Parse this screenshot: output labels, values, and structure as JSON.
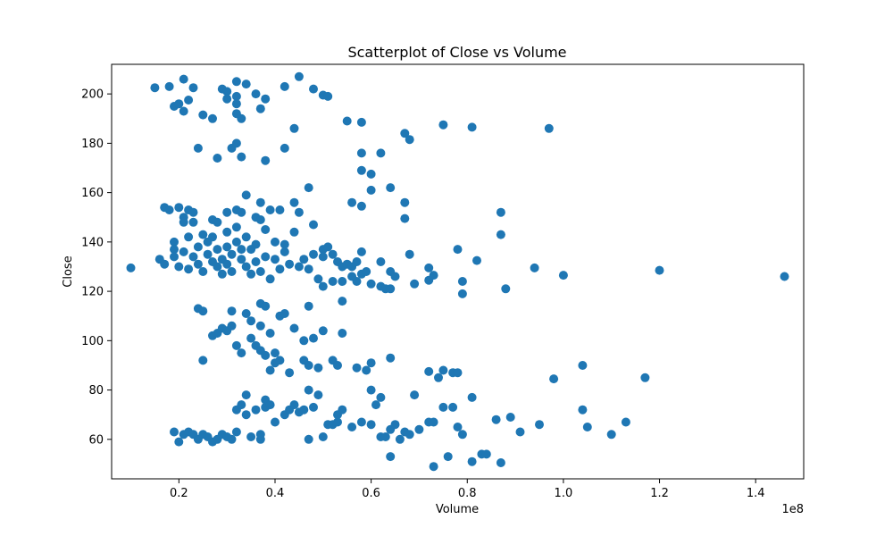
{
  "chart_data": {
    "type": "scatter",
    "title": "Scatterplot of Close vs Volume",
    "xlabel": "Volume",
    "ylabel": "Close",
    "x_offset_label": "1e8",
    "xlim": [
      0.06,
      1.5
    ],
    "ylim": [
      44,
      212
    ],
    "xticks": [
      0.2,
      0.4,
      0.6,
      0.8,
      1.0,
      1.2,
      1.4
    ],
    "xtick_labels": [
      "0.2",
      "0.4",
      "0.6",
      "0.8",
      "1.0",
      "1.2",
      "1.4"
    ],
    "yticks": [
      60,
      80,
      100,
      120,
      140,
      160,
      180,
      200
    ],
    "ytick_labels": [
      "60",
      "80",
      "100",
      "120",
      "140",
      "160",
      "180",
      "200"
    ],
    "grid": false,
    "marker_color": "#1f77b4",
    "points": [
      [
        0.15,
        202.5
      ],
      [
        0.18,
        203
      ],
      [
        0.21,
        206
      ],
      [
        0.23,
        202.5
      ],
      [
        0.19,
        195
      ],
      [
        0.2,
        196
      ],
      [
        0.21,
        193
      ],
      [
        0.22,
        197.5
      ],
      [
        0.25,
        191.5
      ],
      [
        0.27,
        190
      ],
      [
        0.29,
        202
      ],
      [
        0.3,
        201
      ],
      [
        0.3,
        198
      ],
      [
        0.32,
        205
      ],
      [
        0.32,
        199
      ],
      [
        0.32,
        196
      ],
      [
        0.32,
        192
      ],
      [
        0.33,
        190
      ],
      [
        0.34,
        204
      ],
      [
        0.36,
        200
      ],
      [
        0.37,
        194
      ],
      [
        0.38,
        198
      ],
      [
        0.42,
        203
      ],
      [
        0.45,
        207
      ],
      [
        0.48,
        202
      ],
      [
        0.5,
        199.5
      ],
      [
        0.51,
        199
      ],
      [
        0.24,
        178
      ],
      [
        0.28,
        174
      ],
      [
        0.31,
        178
      ],
      [
        0.32,
        180
      ],
      [
        0.33,
        174.5
      ],
      [
        0.38,
        173
      ],
      [
        0.42,
        178
      ],
      [
        0.44,
        186
      ],
      [
        0.55,
        189
      ],
      [
        0.58,
        188.5
      ],
      [
        0.58,
        176
      ],
      [
        0.58,
        169
      ],
      [
        0.6,
        167.5
      ],
      [
        0.62,
        176
      ],
      [
        0.6,
        161
      ],
      [
        0.64,
        162
      ],
      [
        0.67,
        184
      ],
      [
        0.68,
        181.5
      ],
      [
        0.75,
        187.5
      ],
      [
        0.81,
        186.5
      ],
      [
        0.97,
        186
      ],
      [
        0.17,
        154
      ],
      [
        0.18,
        153
      ],
      [
        0.2,
        154
      ],
      [
        0.21,
        150
      ],
      [
        0.21,
        148
      ],
      [
        0.22,
        153
      ],
      [
        0.23,
        152
      ],
      [
        0.23,
        148
      ],
      [
        0.27,
        149
      ],
      [
        0.28,
        148
      ],
      [
        0.3,
        152
      ],
      [
        0.32,
        153
      ],
      [
        0.33,
        152
      ],
      [
        0.34,
        159
      ],
      [
        0.36,
        150
      ],
      [
        0.37,
        156
      ],
      [
        0.37,
        149
      ],
      [
        0.39,
        153
      ],
      [
        0.41,
        153
      ],
      [
        0.44,
        156
      ],
      [
        0.45,
        152
      ],
      [
        0.47,
        162
      ],
      [
        0.48,
        147
      ],
      [
        0.56,
        156
      ],
      [
        0.58,
        154.5
      ],
      [
        0.67,
        156
      ],
      [
        0.67,
        149.5
      ],
      [
        0.87,
        152
      ],
      [
        0.87,
        143
      ],
      [
        0.16,
        133
      ],
      [
        0.17,
        131
      ],
      [
        0.19,
        140
      ],
      [
        0.19,
        137
      ],
      [
        0.19,
        134
      ],
      [
        0.2,
        130
      ],
      [
        0.21,
        136
      ],
      [
        0.22,
        129
      ],
      [
        0.22,
        142
      ],
      [
        0.23,
        134
      ],
      [
        0.24,
        138
      ],
      [
        0.24,
        131
      ],
      [
        0.25,
        143
      ],
      [
        0.25,
        128
      ],
      [
        0.26,
        140
      ],
      [
        0.26,
        135
      ],
      [
        0.27,
        132
      ],
      [
        0.27,
        142
      ],
      [
        0.28,
        130
      ],
      [
        0.28,
        137
      ],
      [
        0.29,
        133
      ],
      [
        0.29,
        127
      ],
      [
        0.3,
        144
      ],
      [
        0.3,
        138
      ],
      [
        0.3,
        131
      ],
      [
        0.31,
        135
      ],
      [
        0.31,
        128
      ],
      [
        0.32,
        146
      ],
      [
        0.32,
        140
      ],
      [
        0.33,
        137
      ],
      [
        0.33,
        133
      ],
      [
        0.34,
        142
      ],
      [
        0.34,
        130
      ],
      [
        0.35,
        137
      ],
      [
        0.35,
        127
      ],
      [
        0.36,
        139
      ],
      [
        0.36,
        132
      ],
      [
        0.37,
        128
      ],
      [
        0.38,
        145
      ],
      [
        0.38,
        134
      ],
      [
        0.39,
        125
      ],
      [
        0.4,
        140
      ],
      [
        0.4,
        133
      ],
      [
        0.41,
        129
      ],
      [
        0.42,
        139
      ],
      [
        0.42,
        136
      ],
      [
        0.43,
        131
      ],
      [
        0.44,
        144
      ],
      [
        0.45,
        130
      ],
      [
        0.46,
        133
      ],
      [
        0.47,
        129
      ],
      [
        0.48,
        135
      ],
      [
        0.49,
        125
      ],
      [
        0.5,
        137
      ],
      [
        0.5,
        134
      ],
      [
        0.51,
        138
      ],
      [
        0.52,
        124
      ],
      [
        0.52,
        135
      ],
      [
        0.53,
        132
      ],
      [
        0.54,
        130
      ],
      [
        0.54,
        124
      ],
      [
        0.55,
        131
      ],
      [
        0.56,
        130
      ],
      [
        0.56,
        126
      ],
      [
        0.57,
        124
      ],
      [
        0.57,
        132
      ],
      [
        0.58,
        127
      ],
      [
        0.58,
        136
      ],
      [
        0.59,
        128
      ],
      [
        0.6,
        123
      ],
      [
        0.62,
        132
      ],
      [
        0.62,
        122
      ],
      [
        0.63,
        121
      ],
      [
        0.64,
        121
      ],
      [
        0.64,
        128
      ],
      [
        0.65,
        126
      ],
      [
        0.68,
        135
      ],
      [
        0.69,
        123
      ],
      [
        0.72,
        124.5
      ],
      [
        0.72,
        129.5
      ],
      [
        0.73,
        126.5
      ],
      [
        0.78,
        137
      ],
      [
        0.79,
        124
      ],
      [
        0.79,
        119
      ],
      [
        0.82,
        132.5
      ],
      [
        0.88,
        121
      ],
      [
        0.94,
        129.5
      ],
      [
        1.0,
        126.5
      ],
      [
        1.2,
        128.5
      ],
      [
        1.46,
        126
      ],
      [
        0.1,
        129.5
      ],
      [
        0.5,
        122
      ],
      [
        0.24,
        113
      ],
      [
        0.25,
        112
      ],
      [
        0.27,
        102
      ],
      [
        0.28,
        103
      ],
      [
        0.29,
        105
      ],
      [
        0.3,
        104
      ],
      [
        0.31,
        112
      ],
      [
        0.31,
        106
      ],
      [
        0.32,
        98
      ],
      [
        0.33,
        95
      ],
      [
        0.34,
        111
      ],
      [
        0.35,
        101
      ],
      [
        0.35,
        108
      ],
      [
        0.36,
        98
      ],
      [
        0.37,
        115
      ],
      [
        0.37,
        106
      ],
      [
        0.37,
        96
      ],
      [
        0.38,
        114
      ],
      [
        0.38,
        94
      ],
      [
        0.39,
        88
      ],
      [
        0.39,
        103
      ],
      [
        0.4,
        95
      ],
      [
        0.4,
        91
      ],
      [
        0.41,
        110
      ],
      [
        0.41,
        92
      ],
      [
        0.42,
        111
      ],
      [
        0.43,
        87
      ],
      [
        0.44,
        105
      ],
      [
        0.46,
        92
      ],
      [
        0.46,
        100
      ],
      [
        0.47,
        114
      ],
      [
        0.47,
        90
      ],
      [
        0.48,
        101
      ],
      [
        0.49,
        89
      ],
      [
        0.5,
        104
      ],
      [
        0.52,
        92
      ],
      [
        0.53,
        90
      ],
      [
        0.54,
        103
      ],
      [
        0.54,
        116
      ],
      [
        0.57,
        89
      ],
      [
        0.59,
        88
      ],
      [
        0.6,
        91
      ],
      [
        0.64,
        93
      ],
      [
        0.25,
        92
      ],
      [
        0.72,
        87.5
      ],
      [
        0.74,
        85
      ],
      [
        0.75,
        88
      ],
      [
        0.77,
        87
      ],
      [
        0.78,
        87
      ],
      [
        0.98,
        84.5
      ],
      [
        1.04,
        90
      ],
      [
        1.17,
        85
      ],
      [
        0.19,
        63
      ],
      [
        0.2,
        59
      ],
      [
        0.21,
        62
      ],
      [
        0.22,
        63
      ],
      [
        0.23,
        62
      ],
      [
        0.24,
        60
      ],
      [
        0.25,
        62
      ],
      [
        0.26,
        61
      ],
      [
        0.27,
        59
      ],
      [
        0.28,
        60
      ],
      [
        0.29,
        62
      ],
      [
        0.3,
        61
      ],
      [
        0.31,
        60
      ],
      [
        0.32,
        63
      ],
      [
        0.32,
        72
      ],
      [
        0.33,
        74
      ],
      [
        0.34,
        78
      ],
      [
        0.34,
        70
      ],
      [
        0.35,
        61
      ],
      [
        0.36,
        72
      ],
      [
        0.37,
        60
      ],
      [
        0.37,
        62
      ],
      [
        0.38,
        73
      ],
      [
        0.38,
        76
      ],
      [
        0.39,
        74
      ],
      [
        0.4,
        67
      ],
      [
        0.42,
        70
      ],
      [
        0.43,
        72
      ],
      [
        0.44,
        74
      ],
      [
        0.45,
        71
      ],
      [
        0.46,
        72
      ],
      [
        0.47,
        80
      ],
      [
        0.48,
        73
      ],
      [
        0.49,
        78
      ],
      [
        0.5,
        61
      ],
      [
        0.51,
        66
      ],
      [
        0.52,
        66
      ],
      [
        0.53,
        67
      ],
      [
        0.53,
        70
      ],
      [
        0.54,
        72
      ],
      [
        0.56,
        65
      ],
      [
        0.58,
        67
      ],
      [
        0.6,
        66
      ],
      [
        0.6,
        80
      ],
      [
        0.61,
        74
      ],
      [
        0.62,
        77
      ],
      [
        0.62,
        61
      ],
      [
        0.63,
        61
      ],
      [
        0.64,
        64
      ],
      [
        0.65,
        66
      ],
      [
        0.66,
        60
      ],
      [
        0.67,
        63
      ],
      [
        0.68,
        62
      ],
      [
        0.69,
        78
      ],
      [
        0.7,
        64
      ],
      [
        0.72,
        67
      ],
      [
        0.73,
        67
      ],
      [
        0.75,
        73
      ],
      [
        0.77,
        73
      ],
      [
        0.78,
        65
      ],
      [
        0.79,
        62
      ],
      [
        0.81,
        77
      ],
      [
        0.86,
        68
      ],
      [
        0.89,
        69
      ],
      [
        0.91,
        63
      ],
      [
        0.95,
        66
      ],
      [
        1.04,
        72
      ],
      [
        1.05,
        65
      ],
      [
        1.1,
        62
      ],
      [
        1.13,
        67
      ],
      [
        0.47,
        60
      ],
      [
        0.64,
        53
      ],
      [
        0.73,
        49
      ],
      [
        0.76,
        53
      ],
      [
        0.81,
        51
      ],
      [
        0.83,
        54
      ],
      [
        0.84,
        54
      ],
      [
        0.87,
        50.5
      ]
    ]
  }
}
